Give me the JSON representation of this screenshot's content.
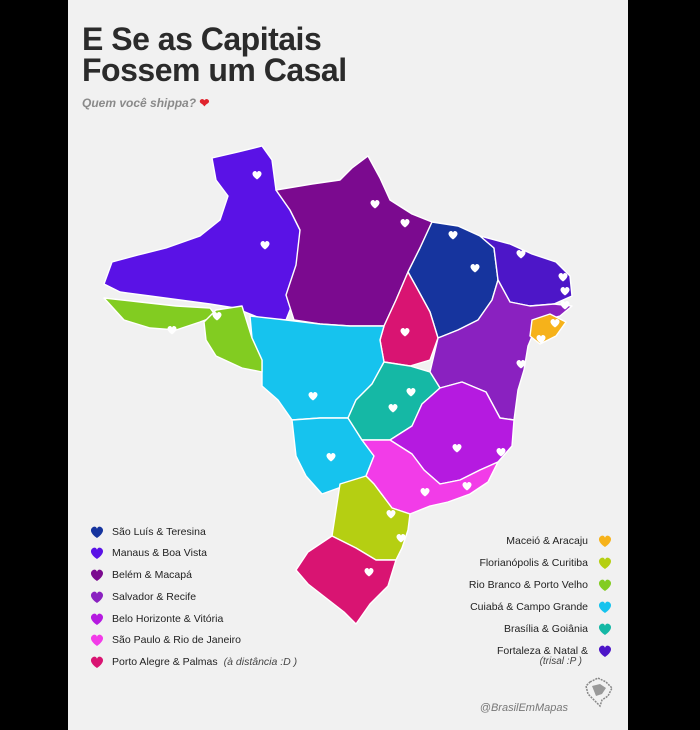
{
  "title_line1": "E Se as Capitais",
  "title_line2": "Fossem um Casal",
  "subtitle": "Quem você shippa?",
  "credit": "@BrasilEmMapas",
  "colors": {
    "dark_blue": "#16349e",
    "violet": "#5a12e6",
    "purple_dark": "#7b0a8f",
    "purple": "#8a21c0",
    "magenta_purple": "#b51ae0",
    "pink": "#f23ce8",
    "crimson": "#d91472",
    "orange": "#f6b21a",
    "lime": "#b5cf12",
    "green": "#82cc21",
    "cyan": "#16c3ee",
    "teal": "#15b8a5",
    "indigo": "#4d16c8"
  },
  "legend_left": [
    {
      "label": "São Luís & Teresina",
      "color": "#16349e"
    },
    {
      "label": "Manaus & Boa Vista",
      "color": "#5a12e6"
    },
    {
      "label": "Belém & Macapá",
      "color": "#7b0a8f"
    },
    {
      "label": "Salvador & Recife",
      "color": "#8a21c0"
    },
    {
      "label": "Belo Horizonte & Vitória",
      "color": "#b51ae0"
    },
    {
      "label": "São Paulo & Rio de Janeiro",
      "color": "#f23ce8"
    },
    {
      "label": "Porto Alegre & Palmas",
      "color": "#d91472",
      "note": "(à distância :D )"
    }
  ],
  "legend_right": [
    {
      "label": "Maceió & Aracaju",
      "color": "#f6b21a"
    },
    {
      "label": "Florianópolis & Curitiba",
      "color": "#b5cf12"
    },
    {
      "label": "Rio Branco & Porto Velho",
      "color": "#82cc21"
    },
    {
      "label": "Cuiabá & Campo Grande",
      "color": "#16c3ee"
    },
    {
      "label": "Brasília & Goiânia",
      "color": "#15b8a5"
    },
    {
      "label": "Fortaleza & Natal &",
      "color": "#4d16c8",
      "note": "(trisal :P )"
    }
  ]
}
